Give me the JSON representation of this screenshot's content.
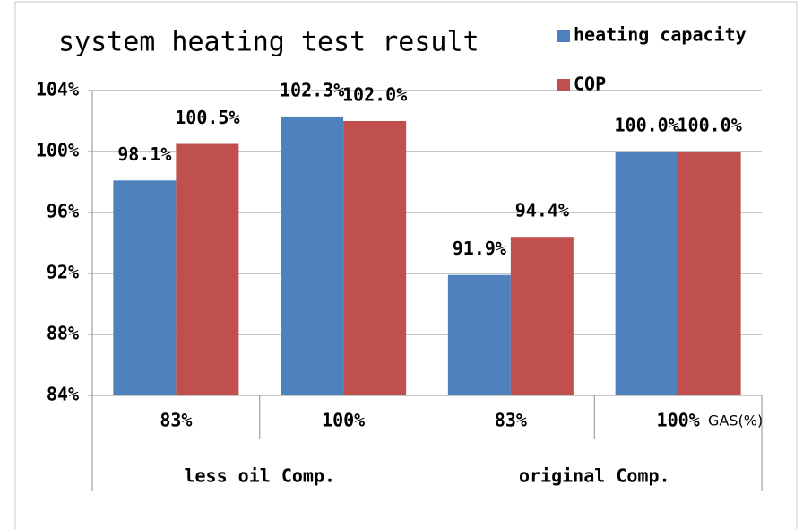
{
  "chart_data": {
    "type": "bar",
    "title": "system heating test result",
    "x_label": "GAS(%)",
    "categories": [
      "83%",
      "100%",
      "83%",
      "100%"
    ],
    "groups": [
      "less oil Comp.",
      "original Comp."
    ],
    "series": [
      {
        "name": "heating capacity",
        "color": "#4f81bd",
        "values": [
          98.1,
          102.3,
          91.9,
          100.0
        ],
        "value_labels": [
          "98.1%",
          "102.3%",
          "91.9%",
          "100.0%"
        ]
      },
      {
        "name": "COP",
        "color": "#c0504d",
        "values": [
          100.5,
          102.0,
          94.4,
          100.0
        ],
        "value_labels": [
          "100.5%",
          "102.0%",
          "94.4%",
          "100.0%"
        ]
      }
    ],
    "ylim": [
      84,
      104
    ],
    "yticks": [
      {
        "value": 84,
        "label": "84%"
      },
      {
        "value": 88,
        "label": "88%"
      },
      {
        "value": 92,
        "label": "92%"
      },
      {
        "value": 96,
        "label": "96%"
      },
      {
        "value": 100,
        "label": "100%"
      },
      {
        "value": 104,
        "label": "104%"
      }
    ],
    "grid": true,
    "legend": "top-right"
  }
}
